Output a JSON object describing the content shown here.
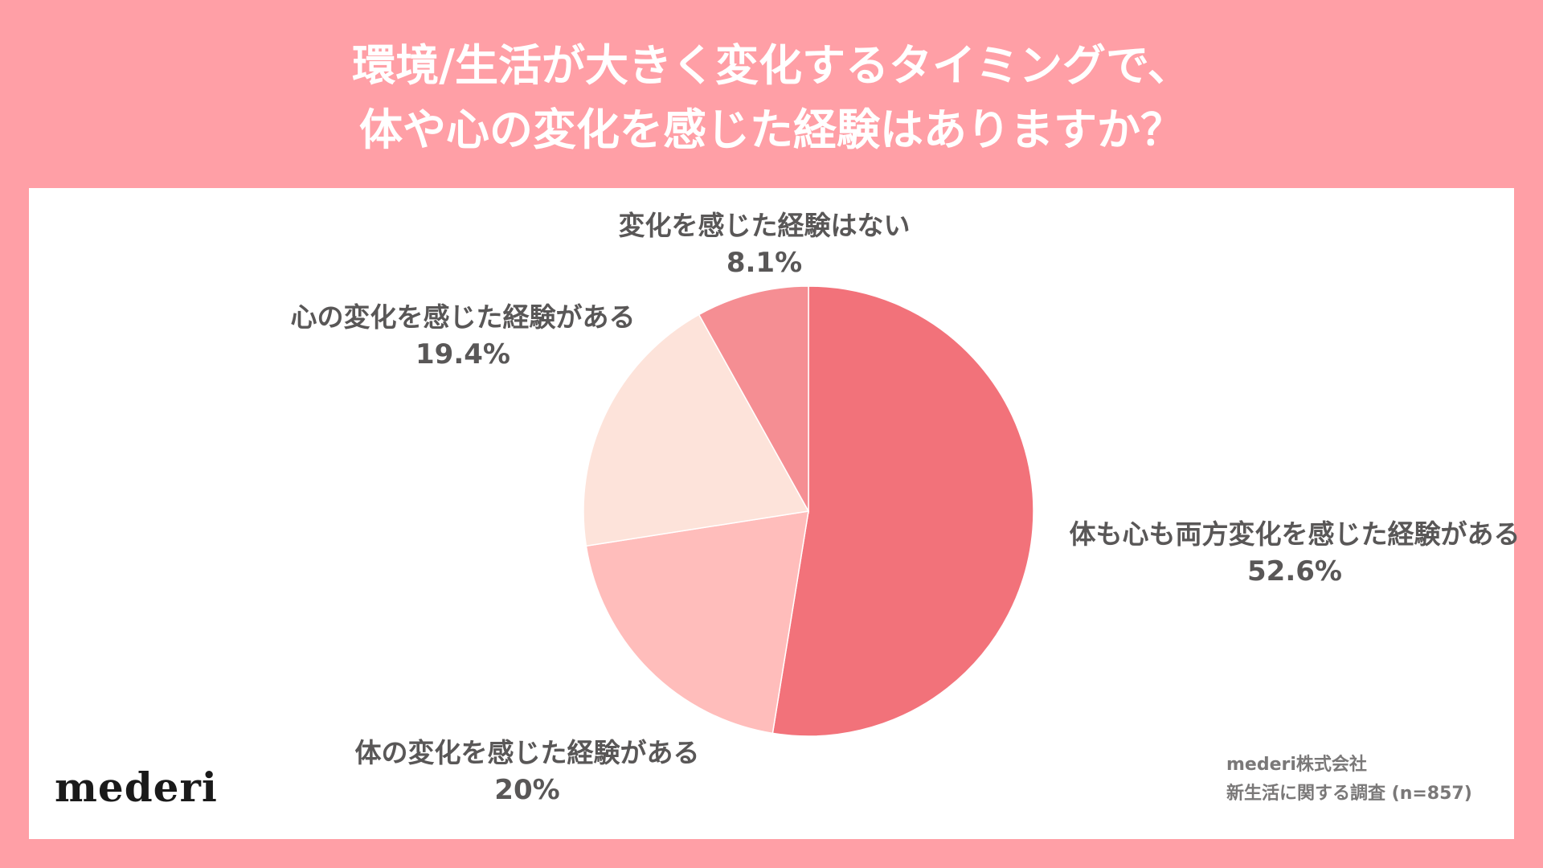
{
  "title_line1": "環境/生活が大きく変化するタイミングで、",
  "title_line2": "体や心の変化を感じた経験はありますか？",
  "chart_data": {
    "type": "pie",
    "title": "環境/生活が大きく変化するタイミングで、体や心の変化を感じた経験はありますか？",
    "slices": [
      {
        "label": "体も心も両方変化を感じた経験がある",
        "value": 52.6,
        "display": "52.6%",
        "color": "#f2727a"
      },
      {
        "label": "体の変化を感じた経験がある",
        "value": 20,
        "display": "20%",
        "color": "#ffbdbb"
      },
      {
        "label": "心の変化を感じた経験がある",
        "value": 19.4,
        "display": "19.4%",
        "color": "#fde3da"
      },
      {
        "label": "変化を感じた経験はない",
        "value": 8.1,
        "display": "8.1%",
        "color": "#f58e93"
      }
    ],
    "start": "12-o'clock",
    "direction": "clockwise"
  },
  "logo": "mederi",
  "source_line1": "mederi株式会社",
  "source_line2": "新生活に関する調査 (n=857)"
}
